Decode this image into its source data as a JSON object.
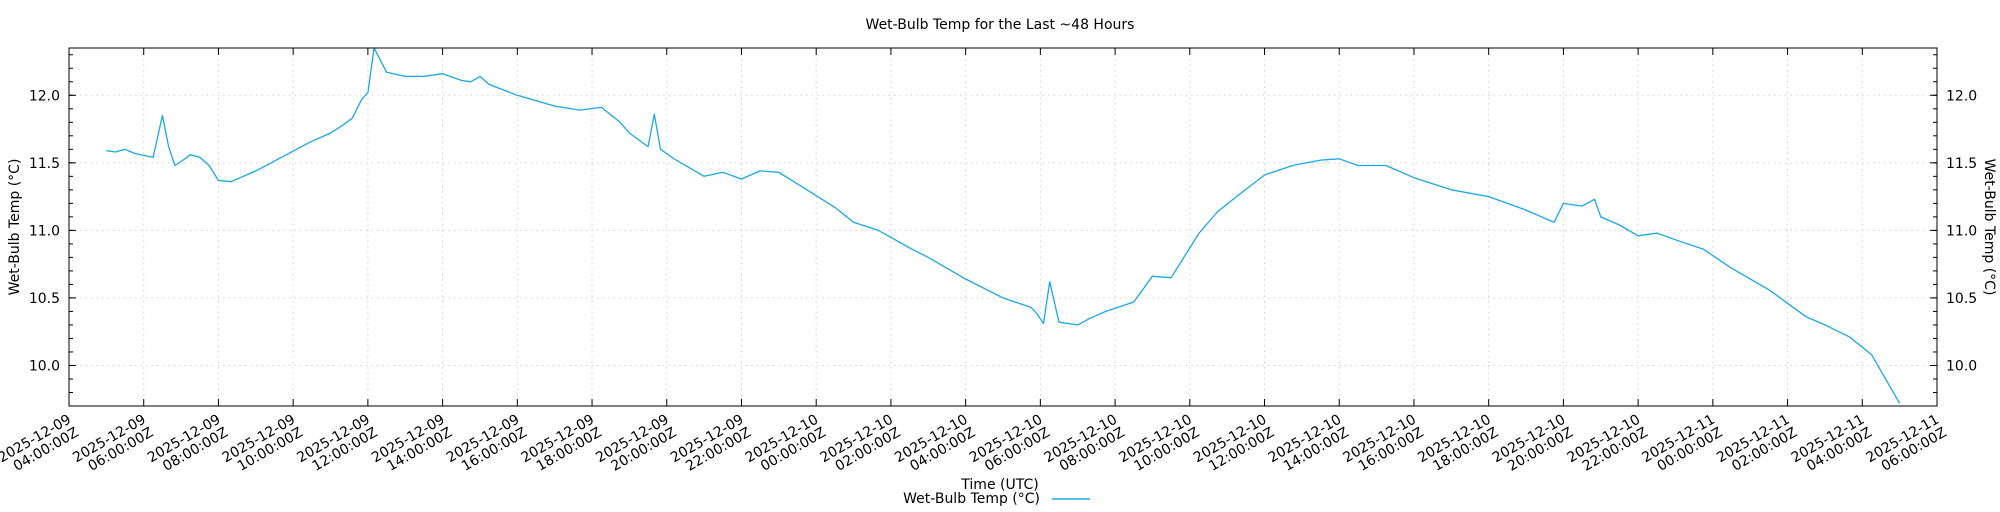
{
  "chart_data": {
    "type": "line",
    "title": "Wet-Bulb Temp for the Last ~48 Hours",
    "xlabel": "Time (UTC)",
    "ylabel": "Wet-Bulb Temp (°C)",
    "ylabel_right": "Wet-Bulb Temp (°C)",
    "xlim": [
      "2025-12-09T04:00:00Z",
      "2025-12-11T06:00:00Z"
    ],
    "ylim": [
      9.7,
      12.35
    ],
    "yticks": [
      10.0,
      10.5,
      11.0,
      11.5,
      12.0
    ],
    "ytick_labels": [
      "10.0",
      "10.5",
      "11.0",
      "11.5",
      "12.0"
    ],
    "xticks": [
      "2025-12-09T04:00:00Z",
      "2025-12-09T06:00:00Z",
      "2025-12-09T08:00:00Z",
      "2025-12-09T10:00:00Z",
      "2025-12-09T12:00:00Z",
      "2025-12-09T14:00:00Z",
      "2025-12-09T16:00:00Z",
      "2025-12-09T18:00:00Z",
      "2025-12-09T20:00:00Z",
      "2025-12-09T22:00:00Z",
      "2025-12-10T00:00:00Z",
      "2025-12-10T02:00:00Z",
      "2025-12-10T04:00:00Z",
      "2025-12-10T06:00:00Z",
      "2025-12-10T08:00:00Z",
      "2025-12-10T10:00:00Z",
      "2025-12-10T12:00:00Z",
      "2025-12-10T14:00:00Z",
      "2025-12-10T16:00:00Z",
      "2025-12-10T18:00:00Z",
      "2025-12-10T20:00:00Z",
      "2025-12-10T22:00:00Z",
      "2025-12-11T00:00:00Z",
      "2025-12-11T02:00:00Z",
      "2025-12-11T04:00:00Z",
      "2025-12-11T06:00:00Z"
    ],
    "xtick_labels": [
      [
        "2025-12-09",
        "04:00:00Z"
      ],
      [
        "2025-12-09",
        "06:00:00Z"
      ],
      [
        "2025-12-09",
        "08:00:00Z"
      ],
      [
        "2025-12-09",
        "10:00:00Z"
      ],
      [
        "2025-12-09",
        "12:00:00Z"
      ],
      [
        "2025-12-09",
        "14:00:00Z"
      ],
      [
        "2025-12-09",
        "16:00:00Z"
      ],
      [
        "2025-12-09",
        "18:00:00Z"
      ],
      [
        "2025-12-09",
        "20:00:00Z"
      ],
      [
        "2025-12-09",
        "22:00:00Z"
      ],
      [
        "2025-12-10",
        "00:00:00Z"
      ],
      [
        "2025-12-10",
        "02:00:00Z"
      ],
      [
        "2025-12-10",
        "04:00:00Z"
      ],
      [
        "2025-12-10",
        "06:00:00Z"
      ],
      [
        "2025-12-10",
        "08:00:00Z"
      ],
      [
        "2025-12-10",
        "10:00:00Z"
      ],
      [
        "2025-12-10",
        "12:00:00Z"
      ],
      [
        "2025-12-10",
        "14:00:00Z"
      ],
      [
        "2025-12-10",
        "16:00:00Z"
      ],
      [
        "2025-12-10",
        "18:00:00Z"
      ],
      [
        "2025-12-10",
        "20:00:00Z"
      ],
      [
        "2025-12-10",
        "22:00:00Z"
      ],
      [
        "2025-12-11",
        "00:00:00Z"
      ],
      [
        "2025-12-11",
        "02:00:00Z"
      ],
      [
        "2025-12-11",
        "04:00:00Z"
      ],
      [
        "2025-12-11",
        "06:00:00Z"
      ]
    ],
    "grid": true,
    "legend_position": "bottom-center",
    "series": [
      {
        "name": "Wet-Bulb Temp (°C)",
        "color": "#1aa7e6",
        "x": [
          "2025-12-09T05:00:00Z",
          "2025-12-09T05:15:00Z",
          "2025-12-09T05:30:00Z",
          "2025-12-09T05:45:00Z",
          "2025-12-09T06:15:00Z",
          "2025-12-09T06:30:00Z",
          "2025-12-09T06:40:00Z",
          "2025-12-09T06:50:00Z",
          "2025-12-09T07:00:00Z",
          "2025-12-09T07:15:00Z",
          "2025-12-09T07:30:00Z",
          "2025-12-09T07:45:00Z",
          "2025-12-09T08:00:00Z",
          "2025-12-09T08:20:00Z",
          "2025-12-09T09:00:00Z",
          "2025-12-09T09:45:00Z",
          "2025-12-09T10:30:00Z",
          "2025-12-09T11:00:00Z",
          "2025-12-09T11:20:00Z",
          "2025-12-09T11:35:00Z",
          "2025-12-09T11:50:00Z",
          "2025-12-09T12:00:00Z",
          "2025-12-09T12:10:00Z",
          "2025-12-09T12:30:00Z",
          "2025-12-09T13:00:00Z",
          "2025-12-09T13:30:00Z",
          "2025-12-09T14:00:00Z",
          "2025-12-09T14:30:00Z",
          "2025-12-09T14:45:00Z",
          "2025-12-09T15:00:00Z",
          "2025-12-09T15:15:00Z",
          "2025-12-09T16:00:00Z",
          "2025-12-09T17:00:00Z",
          "2025-12-09T17:40:00Z",
          "2025-12-09T18:15:00Z",
          "2025-12-09T18:45:00Z",
          "2025-12-09T19:00:00Z",
          "2025-12-09T19:30:00Z",
          "2025-12-09T19:40:00Z",
          "2025-12-09T19:50:00Z",
          "2025-12-09T20:15:00Z",
          "2025-12-09T21:00:00Z",
          "2025-12-09T21:30:00Z",
          "2025-12-09T22:00:00Z",
          "2025-12-09T22:30:00Z",
          "2025-12-09T23:00:00Z",
          "2025-12-09T23:45:00Z",
          "2025-12-10T00:30:00Z",
          "2025-12-10T01:00:00Z",
          "2025-12-10T01:40:00Z",
          "2025-12-10T02:30:00Z",
          "2025-12-10T03:00:00Z",
          "2025-12-10T04:00:00Z",
          "2025-12-10T05:00:00Z",
          "2025-12-10T05:45:00Z",
          "2025-12-10T05:55:00Z",
          "2025-12-10T06:05:00Z",
          "2025-12-10T06:15:00Z",
          "2025-12-10T06:30:00Z",
          "2025-12-10T07:00:00Z",
          "2025-12-10T07:20:00Z",
          "2025-12-10T07:45:00Z",
          "2025-12-10T08:30:00Z",
          "2025-12-10T09:00:00Z",
          "2025-12-10T09:30:00Z",
          "2025-12-10T10:00:00Z",
          "2025-12-10T10:15:00Z",
          "2025-12-10T10:45:00Z",
          "2025-12-10T11:15:00Z",
          "2025-12-10T12:00:00Z",
          "2025-12-10T12:45:00Z",
          "2025-12-10T13:30:00Z",
          "2025-12-10T14:00:00Z",
          "2025-12-10T14:30:00Z",
          "2025-12-10T15:15:00Z",
          "2025-12-10T16:00:00Z",
          "2025-12-10T17:00:00Z",
          "2025-12-10T18:00:00Z",
          "2025-12-10T19:00:00Z",
          "2025-12-10T19:45:00Z",
          "2025-12-10T20:00:00Z",
          "2025-12-10T20:30:00Z",
          "2025-12-10T20:50:00Z",
          "2025-12-10T21:00:00Z",
          "2025-12-10T21:30:00Z",
          "2025-12-10T22:00:00Z",
          "2025-12-10T22:30:00Z",
          "2025-12-10T23:00:00Z",
          "2025-12-10T23:45:00Z",
          "2025-12-11T00:30:00Z",
          "2025-12-11T01:30:00Z",
          "2025-12-11T02:30:00Z",
          "2025-12-11T03:00:00Z",
          "2025-12-11T03:40:00Z",
          "2025-12-11T04:15:00Z",
          "2025-12-11T05:00:00Z"
        ],
        "values": [
          11.59,
          11.58,
          11.6,
          11.57,
          11.54,
          11.85,
          11.62,
          11.48,
          11.51,
          11.56,
          11.54,
          11.48,
          11.37,
          11.36,
          11.44,
          11.55,
          11.66,
          11.72,
          11.78,
          11.83,
          11.97,
          12.02,
          12.35,
          12.17,
          12.14,
          12.14,
          12.16,
          12.11,
          12.1,
          12.14,
          12.08,
          12.0,
          11.92,
          11.89,
          11.91,
          11.8,
          11.72,
          11.62,
          11.86,
          11.6,
          11.52,
          11.4,
          11.43,
          11.38,
          11.44,
          11.43,
          11.3,
          11.17,
          11.06,
          11.0,
          10.87,
          10.8,
          10.64,
          10.5,
          10.43,
          10.38,
          10.31,
          10.62,
          10.32,
          10.3,
          10.35,
          10.4,
          10.47,
          10.66,
          10.65,
          10.87,
          10.98,
          11.14,
          11.25,
          11.41,
          11.48,
          11.52,
          11.53,
          11.48,
          11.48,
          11.39,
          11.3,
          11.25,
          11.15,
          11.06,
          11.2,
          11.18,
          11.23,
          11.1,
          11.04,
          10.96,
          10.98,
          10.93,
          10.86,
          10.72,
          10.56,
          10.36,
          10.3,
          10.21,
          10.08,
          9.72
        ]
      }
    ]
  }
}
